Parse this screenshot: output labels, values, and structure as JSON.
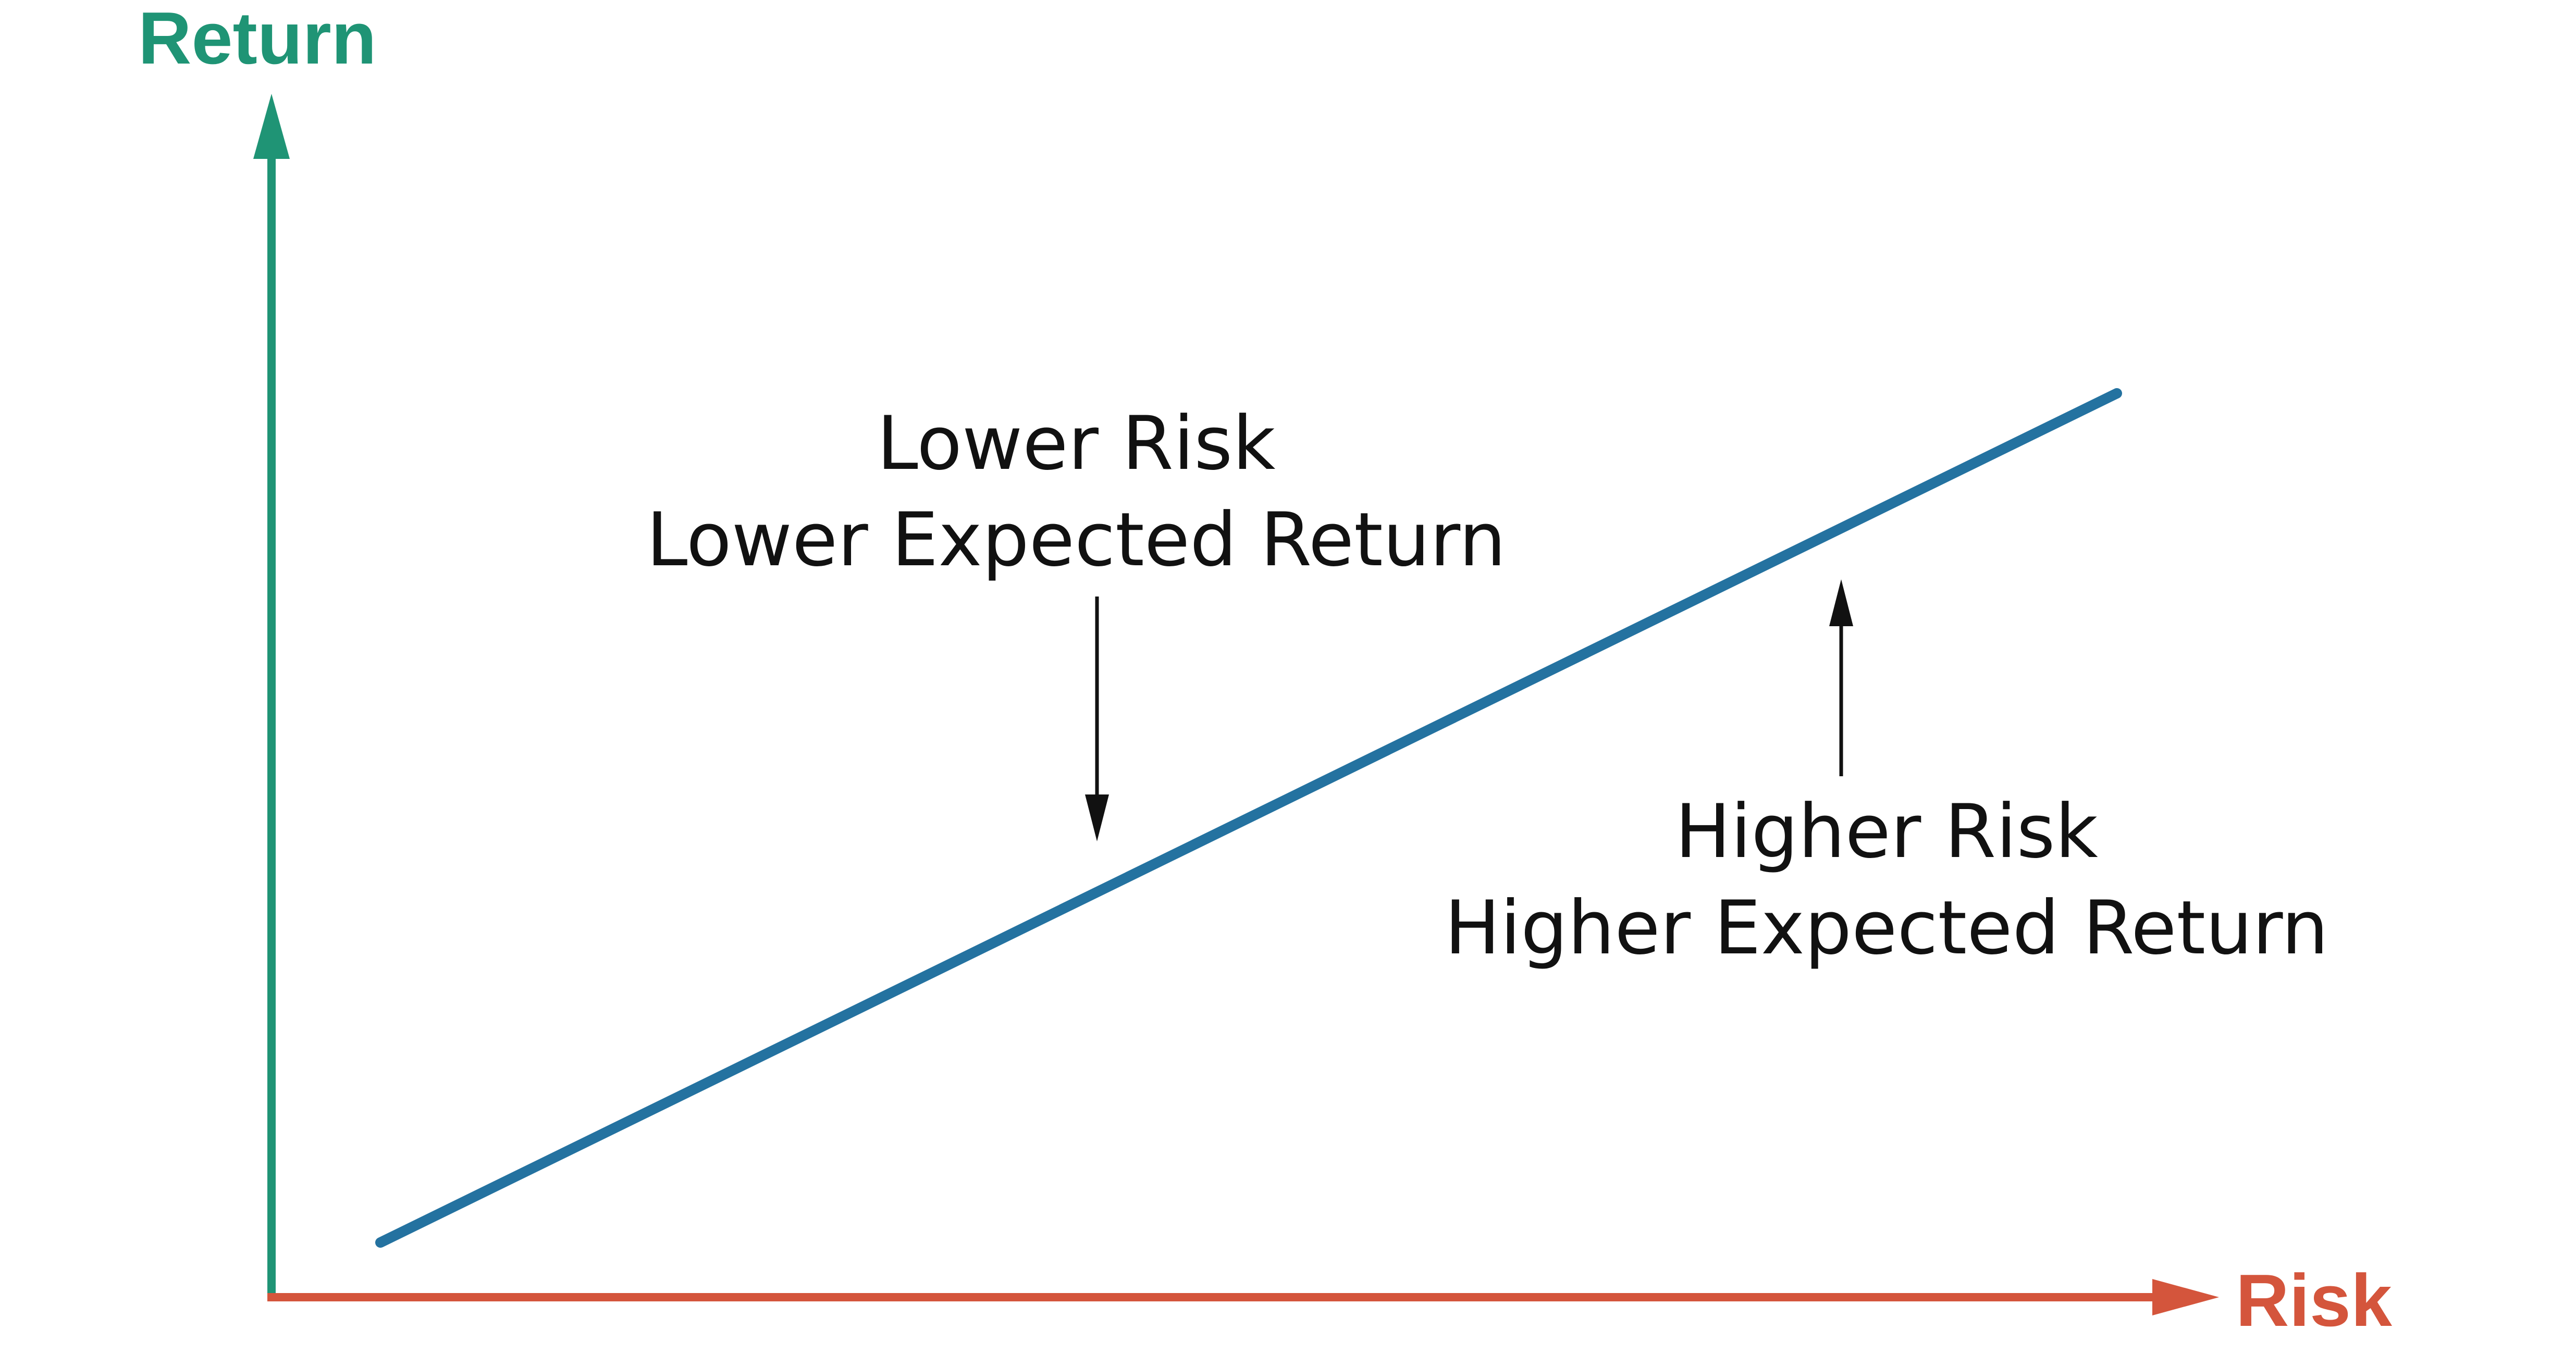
{
  "axes": {
    "y_label": "Return",
    "x_label": "Risk"
  },
  "annotations": {
    "lower": {
      "line1": "Lower Risk",
      "line2": "Lower Expected Return"
    },
    "higher": {
      "line1": "Higher Risk",
      "line2": "Higher Expected Return"
    }
  },
  "colors": {
    "y_axis": "#1f9475",
    "x_axis": "#d4553c",
    "trend_line": "#2472a0",
    "annotation_arrow": "#111111",
    "text": "#111111"
  }
}
